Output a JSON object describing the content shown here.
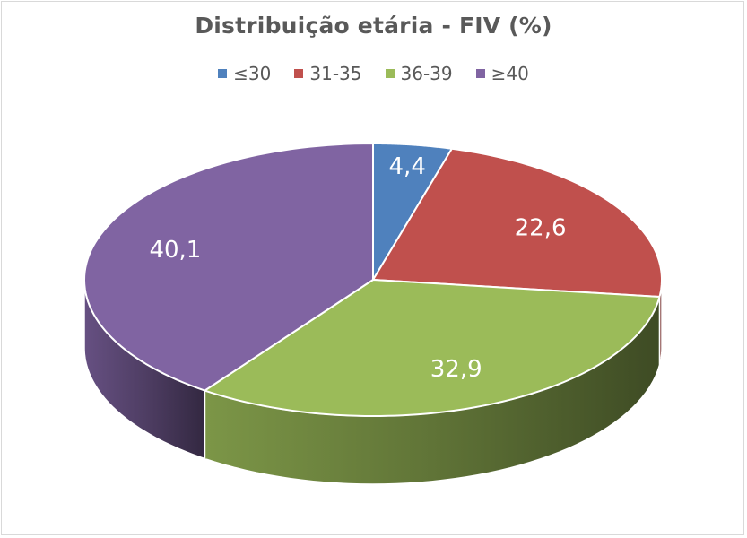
{
  "chart_data": {
    "type": "pie",
    "title": "Distribuição etária - FIV (%)",
    "legend_position": "top",
    "categories": [
      "≤30",
      "31-35",
      "36-39",
      "≥40"
    ],
    "values": [
      4.4,
      22.6,
      32.9,
      40.1
    ],
    "data_labels": [
      "4,4",
      "22,6",
      "32,9",
      "40,1"
    ],
    "colors": [
      "#4f81bd",
      "#c0504d",
      "#9bbb59",
      "#8064a2"
    ],
    "style": "3d"
  }
}
